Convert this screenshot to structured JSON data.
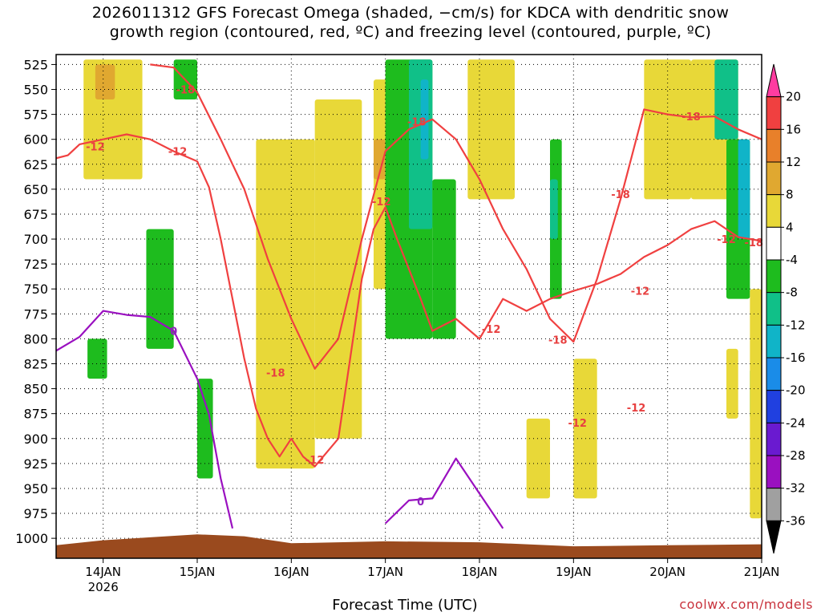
{
  "chart_data": {
    "type": "heatmap",
    "title_line1": "2026011312 GFS Forecast Omega (shaded, −cm/s) for KDCA with dendritic snow",
    "title_line2": "growth region (contoured, red, ºC) and freezing level (contoured, purple, ºC)",
    "xlabel": "Forecast Time (UTC)",
    "credit": "coolwx.com/models",
    "y_axis": {
      "ticks": [
        525,
        550,
        575,
        600,
        625,
        650,
        675,
        700,
        725,
        750,
        775,
        800,
        825,
        850,
        875,
        900,
        925,
        950,
        975,
        1000
      ],
      "range": [
        515,
        1020
      ]
    },
    "x_axis": {
      "range": [
        "2026-01-13T12",
        "2026-01-21T00"
      ],
      "ticks": [
        {
          "t": "2026-01-14T00",
          "label": "14JAN",
          "sublabel": "2026"
        },
        {
          "t": "2026-01-15T00",
          "label": "15JAN"
        },
        {
          "t": "2026-01-16T00",
          "label": "16JAN"
        },
        {
          "t": "2026-01-17T00",
          "label": "17JAN"
        },
        {
          "t": "2026-01-18T00",
          "label": "18JAN"
        },
        {
          "t": "2026-01-19T00",
          "label": "19JAN"
        },
        {
          "t": "2026-01-20T00",
          "label": "20JAN"
        },
        {
          "t": "2026-01-21T00",
          "label": "21JAN"
        }
      ]
    },
    "grid": "dotted",
    "colorbar": {
      "labels": [
        20,
        16,
        12,
        8,
        4,
        -4,
        -8,
        -12,
        -16,
        -20,
        -24,
        -28,
        -32,
        -36
      ],
      "colors": [
        "#ff3ca0",
        "#f04040",
        "#e8802a",
        "#e0a830",
        "#e8d838",
        "#ffffff",
        "#1ebc1e",
        "#10c088",
        "#10b4c8",
        "#1a8ce8",
        "#2040e0",
        "#6a1ad0",
        "#9a10c0",
        "#a0a0a0",
        "#000000"
      ]
    },
    "omega_colors": {
      "light_up": "#e8d838",
      "mod_up": "#e0a830",
      "light_down": "#1ebc1e",
      "mod_down": "#10c088",
      "strong_down": "#10b4c8"
    },
    "contour_colors": {
      "dgz": "#f04040",
      "freezing": "#9a10c0",
      "terrain": "#9a4a1e"
    },
    "contour_labels": [
      {
        "t": "2026-01-13T22",
        "p": 607,
        "text": "-12",
        "kind": "dgz"
      },
      {
        "t": "2026-01-14T21",
        "p": 550,
        "text": "-18",
        "kind": "dgz"
      },
      {
        "t": "2026-01-14T19",
        "p": 612,
        "text": "-12",
        "kind": "dgz"
      },
      {
        "t": "2026-01-15T20",
        "p": 834,
        "text": "-18",
        "kind": "dgz"
      },
      {
        "t": "2026-01-16T06",
        "p": 921,
        "text": "-12",
        "kind": "dgz"
      },
      {
        "t": "2026-01-16T23",
        "p": 662,
        "text": "-12",
        "kind": "dgz"
      },
      {
        "t": "2026-01-17T08",
        "p": 582,
        "text": "-18",
        "kind": "dgz"
      },
      {
        "t": "2026-01-18T03",
        "p": 790,
        "text": "-12",
        "kind": "dgz"
      },
      {
        "t": "2026-01-18T20",
        "p": 801,
        "text": "-18",
        "kind": "dgz"
      },
      {
        "t": "2026-01-19T01",
        "p": 884,
        "text": "-12",
        "kind": "dgz"
      },
      {
        "t": "2026-01-19T12",
        "p": 655,
        "text": "-18",
        "kind": "dgz"
      },
      {
        "t": "2026-01-19T17",
        "p": 752,
        "text": "-12",
        "kind": "dgz"
      },
      {
        "t": "2026-01-19T16",
        "p": 869,
        "text": "-12",
        "kind": "dgz"
      },
      {
        "t": "2026-01-20T06",
        "p": 577,
        "text": "-18",
        "kind": "dgz"
      },
      {
        "t": "2026-01-20T15",
        "p": 700,
        "text": "-12",
        "kind": "dgz"
      },
      {
        "t": "2026-01-20T22",
        "p": 703,
        "text": "-18",
        "kind": "dgz"
      },
      {
        "t": "2026-01-14T18",
        "p": 792,
        "text": "0",
        "kind": "freezing"
      },
      {
        "t": "2026-01-17T09",
        "p": 963,
        "text": "0",
        "kind": "freezing"
      }
    ],
    "dgz_contour_12": [
      [
        "2026-01-13T12",
        619
      ],
      [
        "2026-01-13T15",
        616
      ],
      [
        "2026-01-13T18",
        605
      ],
      [
        "2026-01-14T00",
        600
      ],
      [
        "2026-01-14T06",
        595
      ],
      [
        "2026-01-14T12",
        600
      ],
      [
        "2026-01-14T18",
        612
      ],
      [
        "2026-01-15T00",
        622
      ],
      [
        "2026-01-15T03",
        648
      ],
      [
        "2026-01-15T06",
        700
      ],
      [
        "2026-01-15T09",
        760
      ],
      [
        "2026-01-15T12",
        820
      ],
      [
        "2026-01-15T15",
        870
      ],
      [
        "2026-01-15T18",
        900
      ],
      [
        "2026-01-15T21",
        918
      ],
      [
        "2026-01-16T00",
        900
      ],
      [
        "2026-01-16T03",
        918
      ],
      [
        "2026-01-16T06",
        928
      ],
      [
        "2026-01-16T12",
        900
      ],
      [
        "2026-01-16T15",
        820
      ],
      [
        "2026-01-16T18",
        740
      ],
      [
        "2026-01-16T21",
        690
      ],
      [
        "2026-01-17T00",
        668
      ],
      [
        "2026-01-17T03",
        700
      ],
      [
        "2026-01-17T06",
        730
      ],
      [
        "2026-01-17T09",
        760
      ],
      [
        "2026-01-17T12",
        792
      ],
      [
        "2026-01-17T18",
        780
      ],
      [
        "2026-01-18T00",
        800
      ],
      [
        "2026-01-18T06",
        760
      ],
      [
        "2026-01-18T12",
        772
      ],
      [
        "2026-01-18T18",
        760
      ],
      [
        "2026-01-19T00",
        752
      ],
      [
        "2026-01-19T06",
        745
      ],
      [
        "2026-01-19T12",
        735
      ],
      [
        "2026-01-19T18",
        718
      ],
      [
        "2026-01-20T00",
        706
      ],
      [
        "2026-01-20T06",
        690
      ],
      [
        "2026-01-20T12",
        682
      ],
      [
        "2026-01-20T18",
        698
      ],
      [
        "2026-01-21T00",
        702
      ]
    ],
    "dgz_contour_18": [
      [
        "2026-01-14T12",
        525
      ],
      [
        "2026-01-14T18",
        528
      ],
      [
        "2026-01-15T00",
        553
      ],
      [
        "2026-01-15T06",
        600
      ],
      [
        "2026-01-15T12",
        650
      ],
      [
        "2026-01-15T18",
        720
      ],
      [
        "2026-01-16T00",
        780
      ],
      [
        "2026-01-16T06",
        830
      ],
      [
        "2026-01-16T12",
        800
      ],
      [
        "2026-01-16T18",
        700
      ],
      [
        "2026-01-17T00",
        612
      ],
      [
        "2026-01-17T06",
        590
      ],
      [
        "2026-01-17T12",
        580
      ],
      [
        "2026-01-17T18",
        600
      ],
      [
        "2026-01-18T00",
        640
      ],
      [
        "2026-01-18T06",
        690
      ],
      [
        "2026-01-18T12",
        730
      ],
      [
        "2026-01-18T18",
        780
      ],
      [
        "2026-01-19T00",
        803
      ],
      [
        "2026-01-19T06",
        740
      ],
      [
        "2026-01-19T12",
        660
      ],
      [
        "2026-01-19T18",
        570
      ],
      [
        "2026-01-20T00",
        575
      ],
      [
        "2026-01-20T06",
        578
      ],
      [
        "2026-01-20T12",
        577
      ],
      [
        "2026-01-20T18",
        590
      ],
      [
        "2026-01-21T00",
        600
      ]
    ],
    "freezing_contour": [
      [
        "2026-01-13T12",
        812
      ],
      [
        "2026-01-13T18",
        798
      ],
      [
        "2026-01-14T00",
        772
      ],
      [
        "2026-01-14T06",
        776
      ],
      [
        "2026-01-14T12",
        778
      ],
      [
        "2026-01-14T18",
        792
      ],
      [
        "2026-01-15T00",
        840
      ],
      [
        "2026-01-15T03",
        876
      ],
      [
        "2026-01-15T06",
        940
      ],
      [
        "2026-01-15T09",
        990
      ]
    ],
    "freezing_contour_2": [
      [
        "2026-01-17T00",
        985
      ],
      [
        "2026-01-17T06",
        962
      ],
      [
        "2026-01-17T12",
        960
      ],
      [
        "2026-01-17T18",
        920
      ],
      [
        "2026-01-18T00",
        955
      ],
      [
        "2026-01-18T06",
        990
      ]
    ],
    "surface_pressure": [
      [
        "2026-01-13T12",
        1007
      ],
      [
        "2026-01-14T00",
        1002
      ],
      [
        "2026-01-14T12",
        999
      ],
      [
        "2026-01-15T00",
        996
      ],
      [
        "2026-01-15T12",
        998
      ],
      [
        "2026-01-16T00",
        1005
      ],
      [
        "2026-01-17T00",
        1003
      ],
      [
        "2026-01-18T00",
        1004
      ],
      [
        "2026-01-19T00",
        1008
      ],
      [
        "2026-01-20T00",
        1007
      ],
      [
        "2026-01-21T00",
        1006
      ]
    ],
    "omega_regions": [
      {
        "level": "light_up",
        "t0": "2026-01-13T19",
        "t1": "2026-01-14T10",
        "p0": 520,
        "p1": 640
      },
      {
        "level": "mod_up",
        "t0": "2026-01-13T22",
        "t1": "2026-01-14T03",
        "p0": 525,
        "p1": 560
      },
      {
        "level": "light_down",
        "t0": "2026-01-14T11",
        "t1": "2026-01-14T18",
        "p0": 690,
        "p1": 810
      },
      {
        "level": "light_down",
        "t0": "2026-01-13T20",
        "t1": "2026-01-14T01",
        "p0": 800,
        "p1": 840
      },
      {
        "level": "light_down",
        "t0": "2026-01-14T18",
        "t1": "2026-01-15T00",
        "p0": 520,
        "p1": 560
      },
      {
        "level": "light_down",
        "t0": "2026-01-15T00",
        "t1": "2026-01-15T04",
        "p0": 840,
        "p1": 940
      },
      {
        "level": "light_up",
        "t0": "2026-01-15T15",
        "t1": "2026-01-16T06",
        "p0": 600,
        "p1": 930
      },
      {
        "level": "light_up",
        "t0": "2026-01-16T06",
        "t1": "2026-01-16T18",
        "p0": 560,
        "p1": 900
      },
      {
        "level": "light_up",
        "t0": "2026-01-16T21",
        "t1": "2026-01-17T03",
        "p0": 540,
        "p1": 750
      },
      {
        "level": "mod_up",
        "t0": "2026-01-16T21",
        "t1": "2026-01-17T00",
        "p0": 600,
        "p1": 640
      },
      {
        "level": "light_down",
        "t0": "2026-01-17T00",
        "t1": "2026-01-17T12",
        "p0": 520,
        "p1": 800
      },
      {
        "level": "mod_down",
        "t0": "2026-01-17T06",
        "t1": "2026-01-17T12",
        "p0": 520,
        "p1": 690
      },
      {
        "level": "strong_down",
        "t0": "2026-01-17T09",
        "t1": "2026-01-17T11",
        "p0": 540,
        "p1": 620
      },
      {
        "level": "light_down",
        "t0": "2026-01-17T12",
        "t1": "2026-01-17T18",
        "p0": 640,
        "p1": 800
      },
      {
        "level": "light_up",
        "t0": "2026-01-17T21",
        "t1": "2026-01-18T09",
        "p0": 520,
        "p1": 660
      },
      {
        "level": "light_down",
        "t0": "2026-01-18T18",
        "t1": "2026-01-18T21",
        "p0": 600,
        "p1": 760
      },
      {
        "level": "mod_down",
        "t0": "2026-01-18T18",
        "t1": "2026-01-18T20",
        "p0": 640,
        "p1": 700
      },
      {
        "level": "light_up",
        "t0": "2026-01-18T12",
        "t1": "2026-01-18T18",
        "p0": 880,
        "p1": 960
      },
      {
        "level": "light_up",
        "t0": "2026-01-19T00",
        "t1": "2026-01-19T06",
        "p0": 820,
        "p1": 960
      },
      {
        "level": "light_up",
        "t0": "2026-01-19T18",
        "t1": "2026-01-20T06",
        "p0": 520,
        "p1": 660
      },
      {
        "level": "light_up",
        "t0": "2026-01-20T06",
        "t1": "2026-01-20T18",
        "p0": 520,
        "p1": 660
      },
      {
        "level": "mod_down",
        "t0": "2026-01-20T12",
        "t1": "2026-01-20T18",
        "p0": 520,
        "p1": 600
      },
      {
        "level": "light_down",
        "t0": "2026-01-20T15",
        "t1": "2026-01-20T21",
        "p0": 600,
        "p1": 760
      },
      {
        "level": "strong_down",
        "t0": "2026-01-20T18",
        "t1": "2026-01-20T21",
        "p0": 600,
        "p1": 700
      },
      {
        "level": "light_up",
        "t0": "2026-01-20T15",
        "t1": "2026-01-20T18",
        "p0": 810,
        "p1": 880
      },
      {
        "level": "light_down",
        "t0": "2026-01-20T21",
        "t1": "2026-01-21T00",
        "p0": 830,
        "p1": 880
      },
      {
        "level": "light_up",
        "t0": "2026-01-20T21",
        "t1": "2026-01-21T00",
        "p0": 750,
        "p1": 980
      }
    ]
  }
}
